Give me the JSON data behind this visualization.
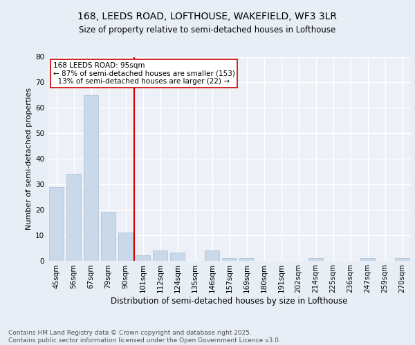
{
  "title1": "168, LEEDS ROAD, LOFTHOUSE, WAKEFIELD, WF3 3LR",
  "title2": "Size of property relative to semi-detached houses in Lofthouse",
  "xlabel": "Distribution of semi-detached houses by size in Lofthouse",
  "ylabel": "Number of semi-detached properties",
  "categories": [
    "45sqm",
    "56sqm",
    "67sqm",
    "79sqm",
    "90sqm",
    "101sqm",
    "112sqm",
    "124sqm",
    "135sqm",
    "146sqm",
    "157sqm",
    "169sqm",
    "180sqm",
    "191sqm",
    "202sqm",
    "214sqm",
    "225sqm",
    "236sqm",
    "247sqm",
    "259sqm",
    "270sqm"
  ],
  "values": [
    29,
    34,
    65,
    19,
    11,
    2,
    4,
    3,
    0,
    4,
    1,
    1,
    0,
    0,
    0,
    1,
    0,
    0,
    1,
    0,
    1
  ],
  "bar_color": "#c9d9ea",
  "bar_edge_color": "#aabccc",
  "vline_color": "#cc0000",
  "annotation_text": "168 LEEDS ROAD: 95sqm\n← 87% of semi-detached houses are smaller (153)\n  13% of semi-detached houses are larger (22) →",
  "annotation_box_color": "#ffffff",
  "annotation_box_edge": "#cc0000",
  "ylim": [
    0,
    80
  ],
  "yticks": [
    0,
    10,
    20,
    30,
    40,
    50,
    60,
    70,
    80
  ],
  "footer": "Contains HM Land Registry data © Crown copyright and database right 2025.\nContains public sector information licensed under the Open Government Licence v3.0.",
  "bg_color": "#e8eef6",
  "plot_bg_color": "#edf1f7",
  "grid_color": "#ffffff",
  "title1_fontsize": 10,
  "title2_fontsize": 8.5,
  "xlabel_fontsize": 8.5,
  "ylabel_fontsize": 8,
  "tick_fontsize": 7.5,
  "footer_fontsize": 6.5,
  "ann_fontsize": 7.5
}
